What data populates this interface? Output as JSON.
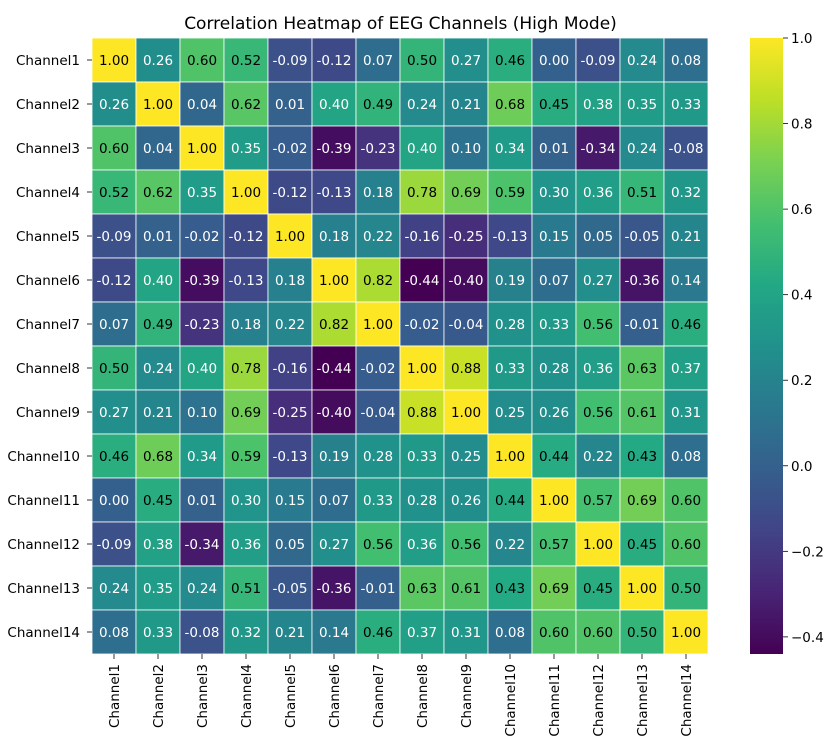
{
  "chart_data": {
    "type": "heatmap",
    "title": "Correlation Heatmap of EEG Channels (High Mode)",
    "rows": [
      "Channel1",
      "Channel2",
      "Channel3",
      "Channel4",
      "Channel5",
      "Channel6",
      "Channel7",
      "Channel8",
      "Channel9",
      "Channel10",
      "Channel11",
      "Channel12",
      "Channel13",
      "Channel14"
    ],
    "columns": [
      "Channel1",
      "Channel2",
      "Channel3",
      "Channel4",
      "Channel5",
      "Channel6",
      "Channel7",
      "Channel8",
      "Channel9",
      "Channel10",
      "Channel11",
      "Channel12",
      "Channel13",
      "Channel14"
    ],
    "values": [
      [
        1.0,
        0.26,
        0.6,
        0.52,
        -0.09,
        -0.12,
        0.07,
        0.5,
        0.27,
        0.46,
        0.0,
        -0.09,
        0.24,
        0.08
      ],
      [
        0.26,
        1.0,
        0.04,
        0.62,
        0.01,
        0.4,
        0.49,
        0.24,
        0.21,
        0.68,
        0.45,
        0.38,
        0.35,
        0.33
      ],
      [
        0.6,
        0.04,
        1.0,
        0.35,
        -0.02,
        -0.39,
        -0.23,
        0.4,
        0.1,
        0.34,
        0.01,
        -0.34,
        0.24,
        -0.08
      ],
      [
        0.52,
        0.62,
        0.35,
        1.0,
        -0.12,
        -0.13,
        0.18,
        0.78,
        0.69,
        0.59,
        0.3,
        0.36,
        0.51,
        0.32
      ],
      [
        -0.09,
        0.01,
        -0.02,
        -0.12,
        1.0,
        0.18,
        0.22,
        -0.16,
        -0.25,
        -0.13,
        0.15,
        0.05,
        -0.05,
        0.21
      ],
      [
        -0.12,
        0.4,
        -0.39,
        -0.13,
        0.18,
        1.0,
        0.82,
        -0.44,
        -0.4,
        0.19,
        0.07,
        0.27,
        -0.36,
        0.14
      ],
      [
        0.07,
        0.49,
        -0.23,
        0.18,
        0.22,
        0.82,
        1.0,
        -0.02,
        -0.04,
        0.28,
        0.33,
        0.56,
        -0.01,
        0.46
      ],
      [
        0.5,
        0.24,
        0.4,
        0.78,
        -0.16,
        -0.44,
        -0.02,
        1.0,
        0.88,
        0.33,
        0.28,
        0.36,
        0.63,
        0.37
      ],
      [
        0.27,
        0.21,
        0.1,
        0.69,
        -0.25,
        -0.4,
        -0.04,
        0.88,
        1.0,
        0.25,
        0.26,
        0.56,
        0.61,
        0.31
      ],
      [
        0.46,
        0.68,
        0.34,
        0.59,
        -0.13,
        0.19,
        0.28,
        0.33,
        0.25,
        1.0,
        0.44,
        0.22,
        0.43,
        0.08
      ],
      [
        0.0,
        0.45,
        0.01,
        0.3,
        0.15,
        0.07,
        0.33,
        0.28,
        0.26,
        0.44,
        1.0,
        0.57,
        0.69,
        0.6
      ],
      [
        -0.09,
        0.38,
        -0.34,
        0.36,
        0.05,
        0.27,
        0.56,
        0.36,
        0.56,
        0.22,
        0.57,
        1.0,
        0.45,
        0.6
      ],
      [
        0.24,
        0.35,
        0.24,
        0.51,
        -0.05,
        -0.36,
        -0.01,
        0.63,
        0.61,
        0.43,
        0.69,
        0.45,
        1.0,
        0.5
      ],
      [
        0.08,
        0.33,
        -0.08,
        0.32,
        0.21,
        0.14,
        0.46,
        0.37,
        0.31,
        0.08,
        0.6,
        0.6,
        0.5,
        1.0
      ]
    ],
    "value_format": "2 decimals",
    "colormap": "viridis",
    "colorbar": {
      "range": [
        -0.44,
        1.0
      ],
      "ticks": [
        -0.4,
        -0.2,
        0.0,
        0.2,
        0.4,
        0.6,
        0.8,
        1.0
      ],
      "tick_labels": [
        "−0.4",
        "−0.2",
        "0.0",
        "0.2",
        "0.4",
        "0.6",
        "0.8",
        "1.0"
      ]
    },
    "cell_border_color": "#ffffff",
    "label_colors": {
      "dark_text": "#000000",
      "light_text": "#ffffff"
    },
    "xlabel": "",
    "ylabel": ""
  }
}
